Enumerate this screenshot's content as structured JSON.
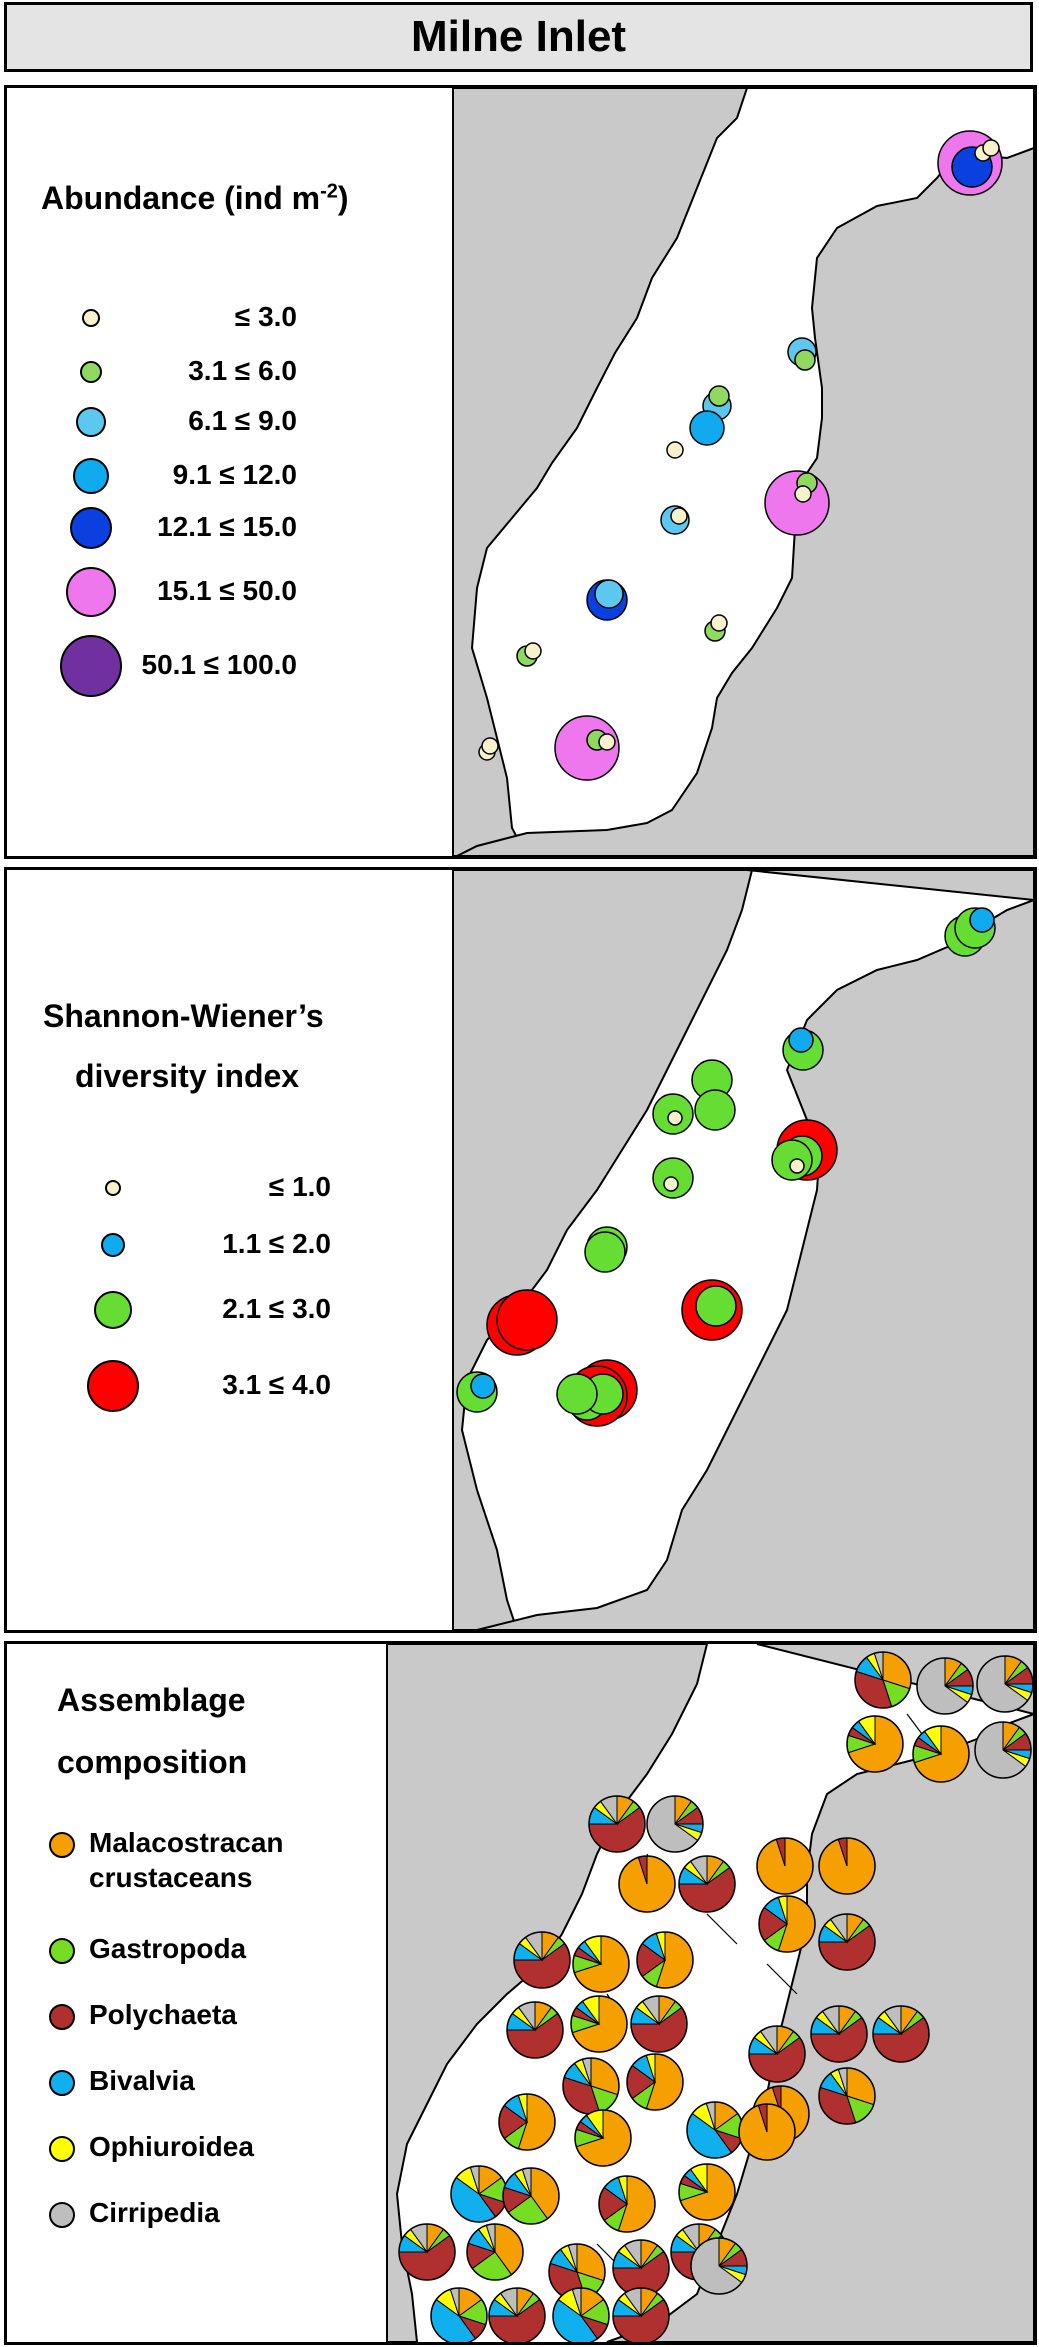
{
  "title": "Milne Inlet",
  "abundance": {
    "title_main": "Abundance (ind m",
    "title_sup": "-2",
    "title_end": ")",
    "legend": [
      {
        "label": "≤ 3.0",
        "color": "#f8f2cc"
      },
      {
        "label": "3.1 ≤ 6.0",
        "color": "#90d860"
      },
      {
        "label": "6.1 ≤ 9.0",
        "color": "#5cc8f0"
      },
      {
        "label": "9.1 ≤ 12.0",
        "color": "#10aaee"
      },
      {
        "label": "12.1 ≤ 15.0",
        "color": "#0a3fe0"
      },
      {
        "label": "15.1 ≤ 50.0",
        "color": "#ee77ee"
      },
      {
        "label": "50.1 ≤ 100.0",
        "color": "#7030a0"
      }
    ]
  },
  "diversity": {
    "title_line1": "Shannon-Wiener’s",
    "title_line2": "diversity index",
    "legend": [
      {
        "label": "≤ 1.0",
        "color": "#f8f2cc"
      },
      {
        "label": "1.1 ≤ 2.0",
        "color": "#10aaee"
      },
      {
        "label": "2.1 ≤ 3.0",
        "color": "#66dd33"
      },
      {
        "label": "3.1 ≤ 4.0",
        "color": "#ff0000"
      }
    ]
  },
  "assemblage": {
    "title_line1": "Assemblage",
    "title_line2": "composition",
    "legend": [
      {
        "label_line1": "Malacostracan",
        "label_line2": "crustaceans",
        "color": "#f5a000"
      },
      {
        "label_line1": "Gastropoda",
        "label_line2": "",
        "color": "#77dd22"
      },
      {
        "label_line1": "Polychaeta",
        "label_line2": "",
        "color": "#b03030"
      },
      {
        "label_line1": "Bivalvia",
        "label_line2": "",
        "color": "#10b0ee"
      },
      {
        "label_line1": "Ophiuroidea",
        "label_line2": "",
        "color": "#ffff00"
      },
      {
        "label_line1": "Cirripedia",
        "label_line2": "",
        "color": "#bebebe"
      }
    ]
  },
  "colors": {
    "land": "#c9c9c9",
    "water": "#ffffff",
    "coastline": "#000000"
  }
}
